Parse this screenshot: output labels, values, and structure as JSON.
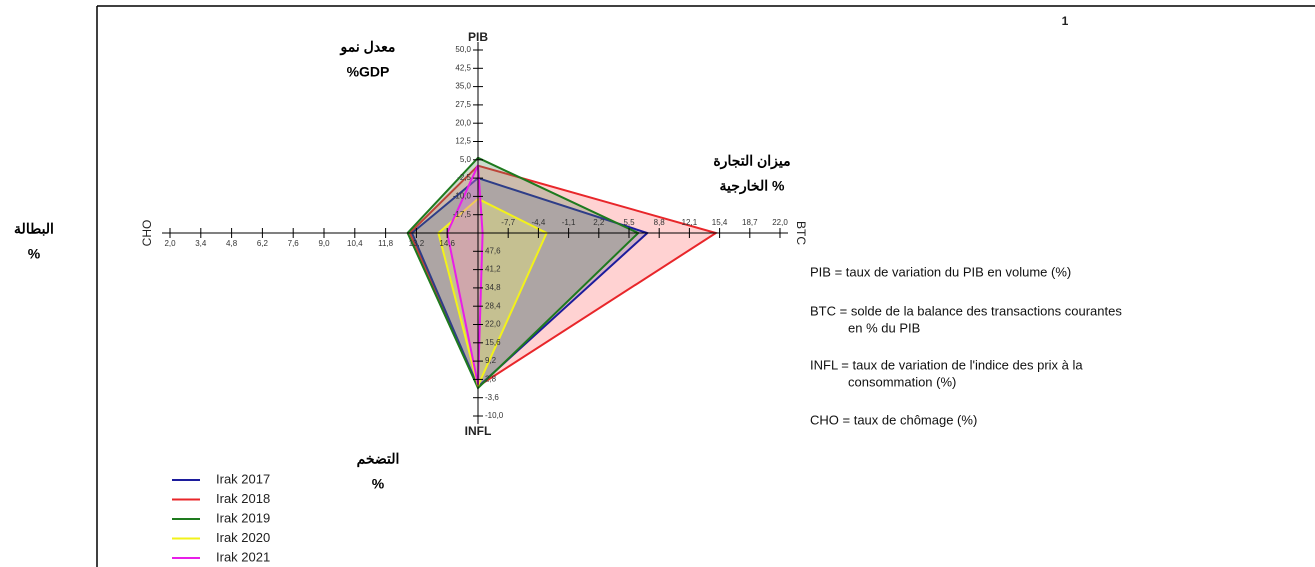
{
  "chart_data": {
    "type": "radar",
    "page_number": "1",
    "axes": [
      {
        "name": "PIB",
        "label": "معدل نمو",
        "label2": "%GDP",
        "lim": [
          -25,
          50
        ],
        "ticks": [
          {
            "value": -17.5,
            "label": "-17,5"
          },
          {
            "value": -10,
            "label": "-10,0"
          },
          {
            "value": -2.5,
            "label": "-2,5"
          },
          {
            "value": 5,
            "label": "5,0"
          },
          {
            "value": 12.5,
            "label": "12,5"
          },
          {
            "value": 20,
            "label": "20,0"
          },
          {
            "value": 27.5,
            "label": "27,5"
          },
          {
            "value": 35,
            "label": "35,0"
          },
          {
            "value": 42.5,
            "label": "42,5"
          },
          {
            "value": 50,
            "label": "50,0"
          }
        ]
      },
      {
        "name": "BTC",
        "label": "ميزان التجارة",
        "label2": "الخارجية %",
        "lim": [
          -11,
          22
        ],
        "ticks": [
          {
            "value": -7.7,
            "label": "-7,7"
          },
          {
            "value": -4.4,
            "label": "-4,4"
          },
          {
            "value": -1.1,
            "label": "-1,1"
          },
          {
            "value": 2.2,
            "label": "2,2"
          },
          {
            "value": 5.5,
            "label": "5,5"
          },
          {
            "value": 8.8,
            "label": "8,8"
          },
          {
            "value": 12.1,
            "label": "12,1"
          },
          {
            "value": 15.4,
            "label": "15,4"
          },
          {
            "value": 18.7,
            "label": "18,7"
          },
          {
            "value": 22,
            "label": "22,0"
          }
        ]
      },
      {
        "name": "INFL",
        "label": "التضخم",
        "label2": "%",
        "lim": [
          54,
          -10
        ],
        "ticks": [
          {
            "value": 47.6,
            "label": "47,6"
          },
          {
            "value": 41.2,
            "label": "41,2"
          },
          {
            "value": 34.8,
            "label": "34,8"
          },
          {
            "value": 28.4,
            "label": "28,4"
          },
          {
            "value": 22,
            "label": "22,0"
          },
          {
            "value": 15.6,
            "label": "15,6"
          },
          {
            "value": 9.2,
            "label": "9,2"
          },
          {
            "value": 2.8,
            "label": "2,8"
          },
          {
            "value": -3.6,
            "label": "-3,6"
          },
          {
            "value": -10,
            "label": "-10,0"
          }
        ]
      },
      {
        "name": "CHO",
        "label": "البطالة",
        "label2": "%",
        "lim": [
          16,
          2
        ],
        "ticks": [
          {
            "value": 14.6,
            "label": "14,6"
          },
          {
            "value": 13.2,
            "label": "13,2"
          },
          {
            "value": 11.8,
            "label": "11,8"
          },
          {
            "value": 10.4,
            "label": "10,4"
          },
          {
            "value": 9,
            "label": "9,0"
          },
          {
            "value": 7.6,
            "label": "7,6"
          },
          {
            "value": 6.2,
            "label": "6,2"
          },
          {
            "value": 4.8,
            "label": "4,8"
          },
          {
            "value": 3.4,
            "label": "3,4"
          },
          {
            "value": 2,
            "label": "2,0"
          }
        ]
      }
    ],
    "series": [
      {
        "name": "Irak 2018",
        "color": "#e8262a",
        "fill": "#ff6b6b",
        "values": [
          2.6,
          15.0,
          0.4,
          12.9
        ]
      },
      {
        "name": "Irak 2017",
        "color": "#1c1c9c",
        "fill": "#6666aa",
        "values": [
          -2.5,
          7.5,
          0.2,
          13.0
        ]
      },
      {
        "name": "Irak 2019",
        "color": "#1e7a1e",
        "fill": "#5a8a5a",
        "values": [
          5.8,
          6.5,
          -0.2,
          12.8
        ]
      },
      {
        "name": "Irak 2020",
        "color": "#f2f21a",
        "fill": "#ffff66",
        "values": [
          -11.0,
          -3.5,
          0.6,
          14.2
        ]
      },
      {
        "name": "Irak 2021",
        "color": "#e81ee8",
        "fill": "#e86ee8",
        "values": [
          2.8,
          -10.5,
          1.0,
          14.6
        ]
      }
    ],
    "legend_order": [
      1,
      0,
      2,
      3,
      4
    ],
    "definitions": [
      [
        "PIB = taux de variation du PIB en volume (%)"
      ],
      [
        "BTC = solde de la balance des transactions courantes",
        "en % du PIB"
      ],
      [
        "INFL = taux de variation de l'indice des prix à la",
        "consommation (%)"
      ],
      [
        "CHO = taux de chômage (%)"
      ]
    ]
  }
}
